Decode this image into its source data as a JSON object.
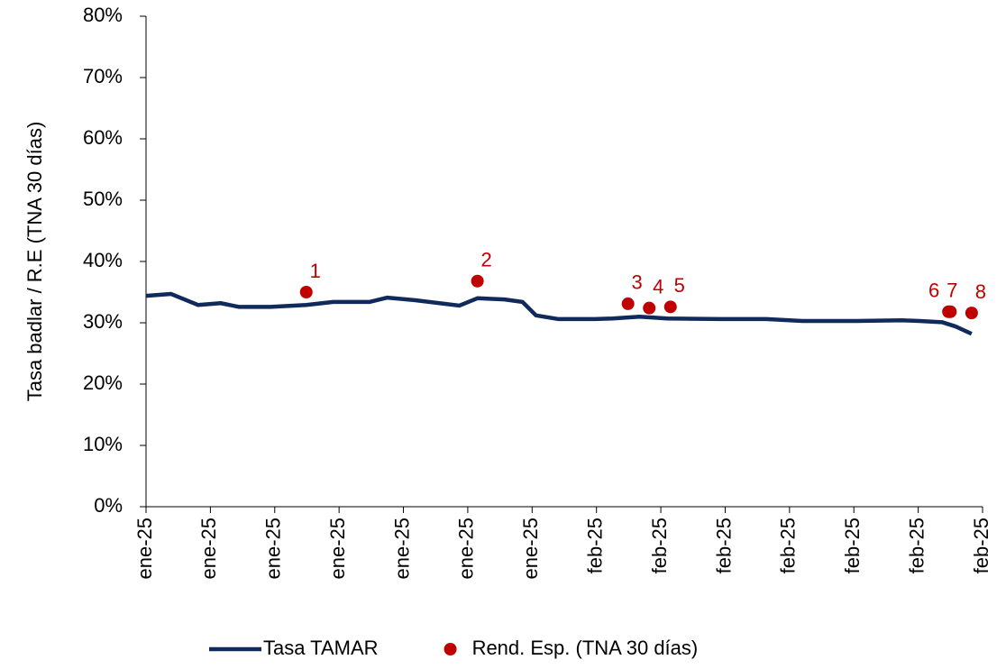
{
  "chart_data": {
    "type": "line",
    "y_label": "Tasa badlar / R.E (TNA 30 días)",
    "xlim": [
      0,
      13
    ],
    "xticks": [
      {
        "value": 0,
        "label": "ene-25"
      },
      {
        "value": 1,
        "label": "ene-25"
      },
      {
        "value": 2,
        "label": "ene-25"
      },
      {
        "value": 3,
        "label": "ene-25"
      },
      {
        "value": 4,
        "label": "ene-25"
      },
      {
        "value": 5,
        "label": "ene-25"
      },
      {
        "value": 6,
        "label": "ene-25"
      },
      {
        "value": 7,
        "label": "feb-25"
      },
      {
        "value": 8,
        "label": "feb-25"
      },
      {
        "value": 9,
        "label": "feb-25"
      },
      {
        "value": 10,
        "label": "feb-25"
      },
      {
        "value": 11,
        "label": "feb-25"
      },
      {
        "value": 12,
        "label": "feb-25"
      },
      {
        "value": 13,
        "label": "feb-25"
      }
    ],
    "ylim": [
      0,
      80
    ],
    "yticks": [
      {
        "value": 0,
        "label": "0%"
      },
      {
        "value": 10,
        "label": "10%"
      },
      {
        "value": 20,
        "label": "20%"
      },
      {
        "value": 30,
        "label": "30%"
      },
      {
        "value": 40,
        "label": "40%"
      },
      {
        "value": 50,
        "label": "50%"
      },
      {
        "value": 60,
        "label": "60%"
      },
      {
        "value": 70,
        "label": "70%"
      },
      {
        "value": 80,
        "label": "80%"
      }
    ],
    "legend": "bottom",
    "series": [
      {
        "name": "Tasa TAMAR",
        "type": "line",
        "color": "#102a5c",
        "x": [
          0,
          0.39,
          0.81,
          1.16,
          1.44,
          1.93,
          2.49,
          2.91,
          3.47,
          3.75,
          4.17,
          4.87,
          5.15,
          5.57,
          5.85,
          6.06,
          6.41,
          6.97,
          7.25,
          7.67,
          8.1,
          8.94,
          9.64,
          10.2,
          11.04,
          11.74,
          12.02,
          12.37,
          12.58,
          12.83
        ],
        "values": [
          34.4,
          34.7,
          32.9,
          33.2,
          32.6,
          32.6,
          32.9,
          33.4,
          33.4,
          34.1,
          33.7,
          32.8,
          34.0,
          33.8,
          33.4,
          31.2,
          30.6,
          30.6,
          30.7,
          31.0,
          30.7,
          30.6,
          30.6,
          30.3,
          30.3,
          30.4,
          30.3,
          30.1,
          29.4,
          28.2
        ]
      },
      {
        "name": "Rend. Esp. (TNA 30 días)",
        "type": "scatter",
        "color": "#c00000",
        "x": [
          2.49,
          5.15,
          7.49,
          7.82,
          8.15,
          12.47,
          12.5,
          12.83
        ],
        "values": [
          35.0,
          36.8,
          33.1,
          32.4,
          32.6,
          31.8,
          31.8,
          31.6
        ],
        "labels": [
          "1",
          "2",
          "3",
          "4",
          "5",
          "6",
          "7",
          "8"
        ]
      }
    ]
  }
}
